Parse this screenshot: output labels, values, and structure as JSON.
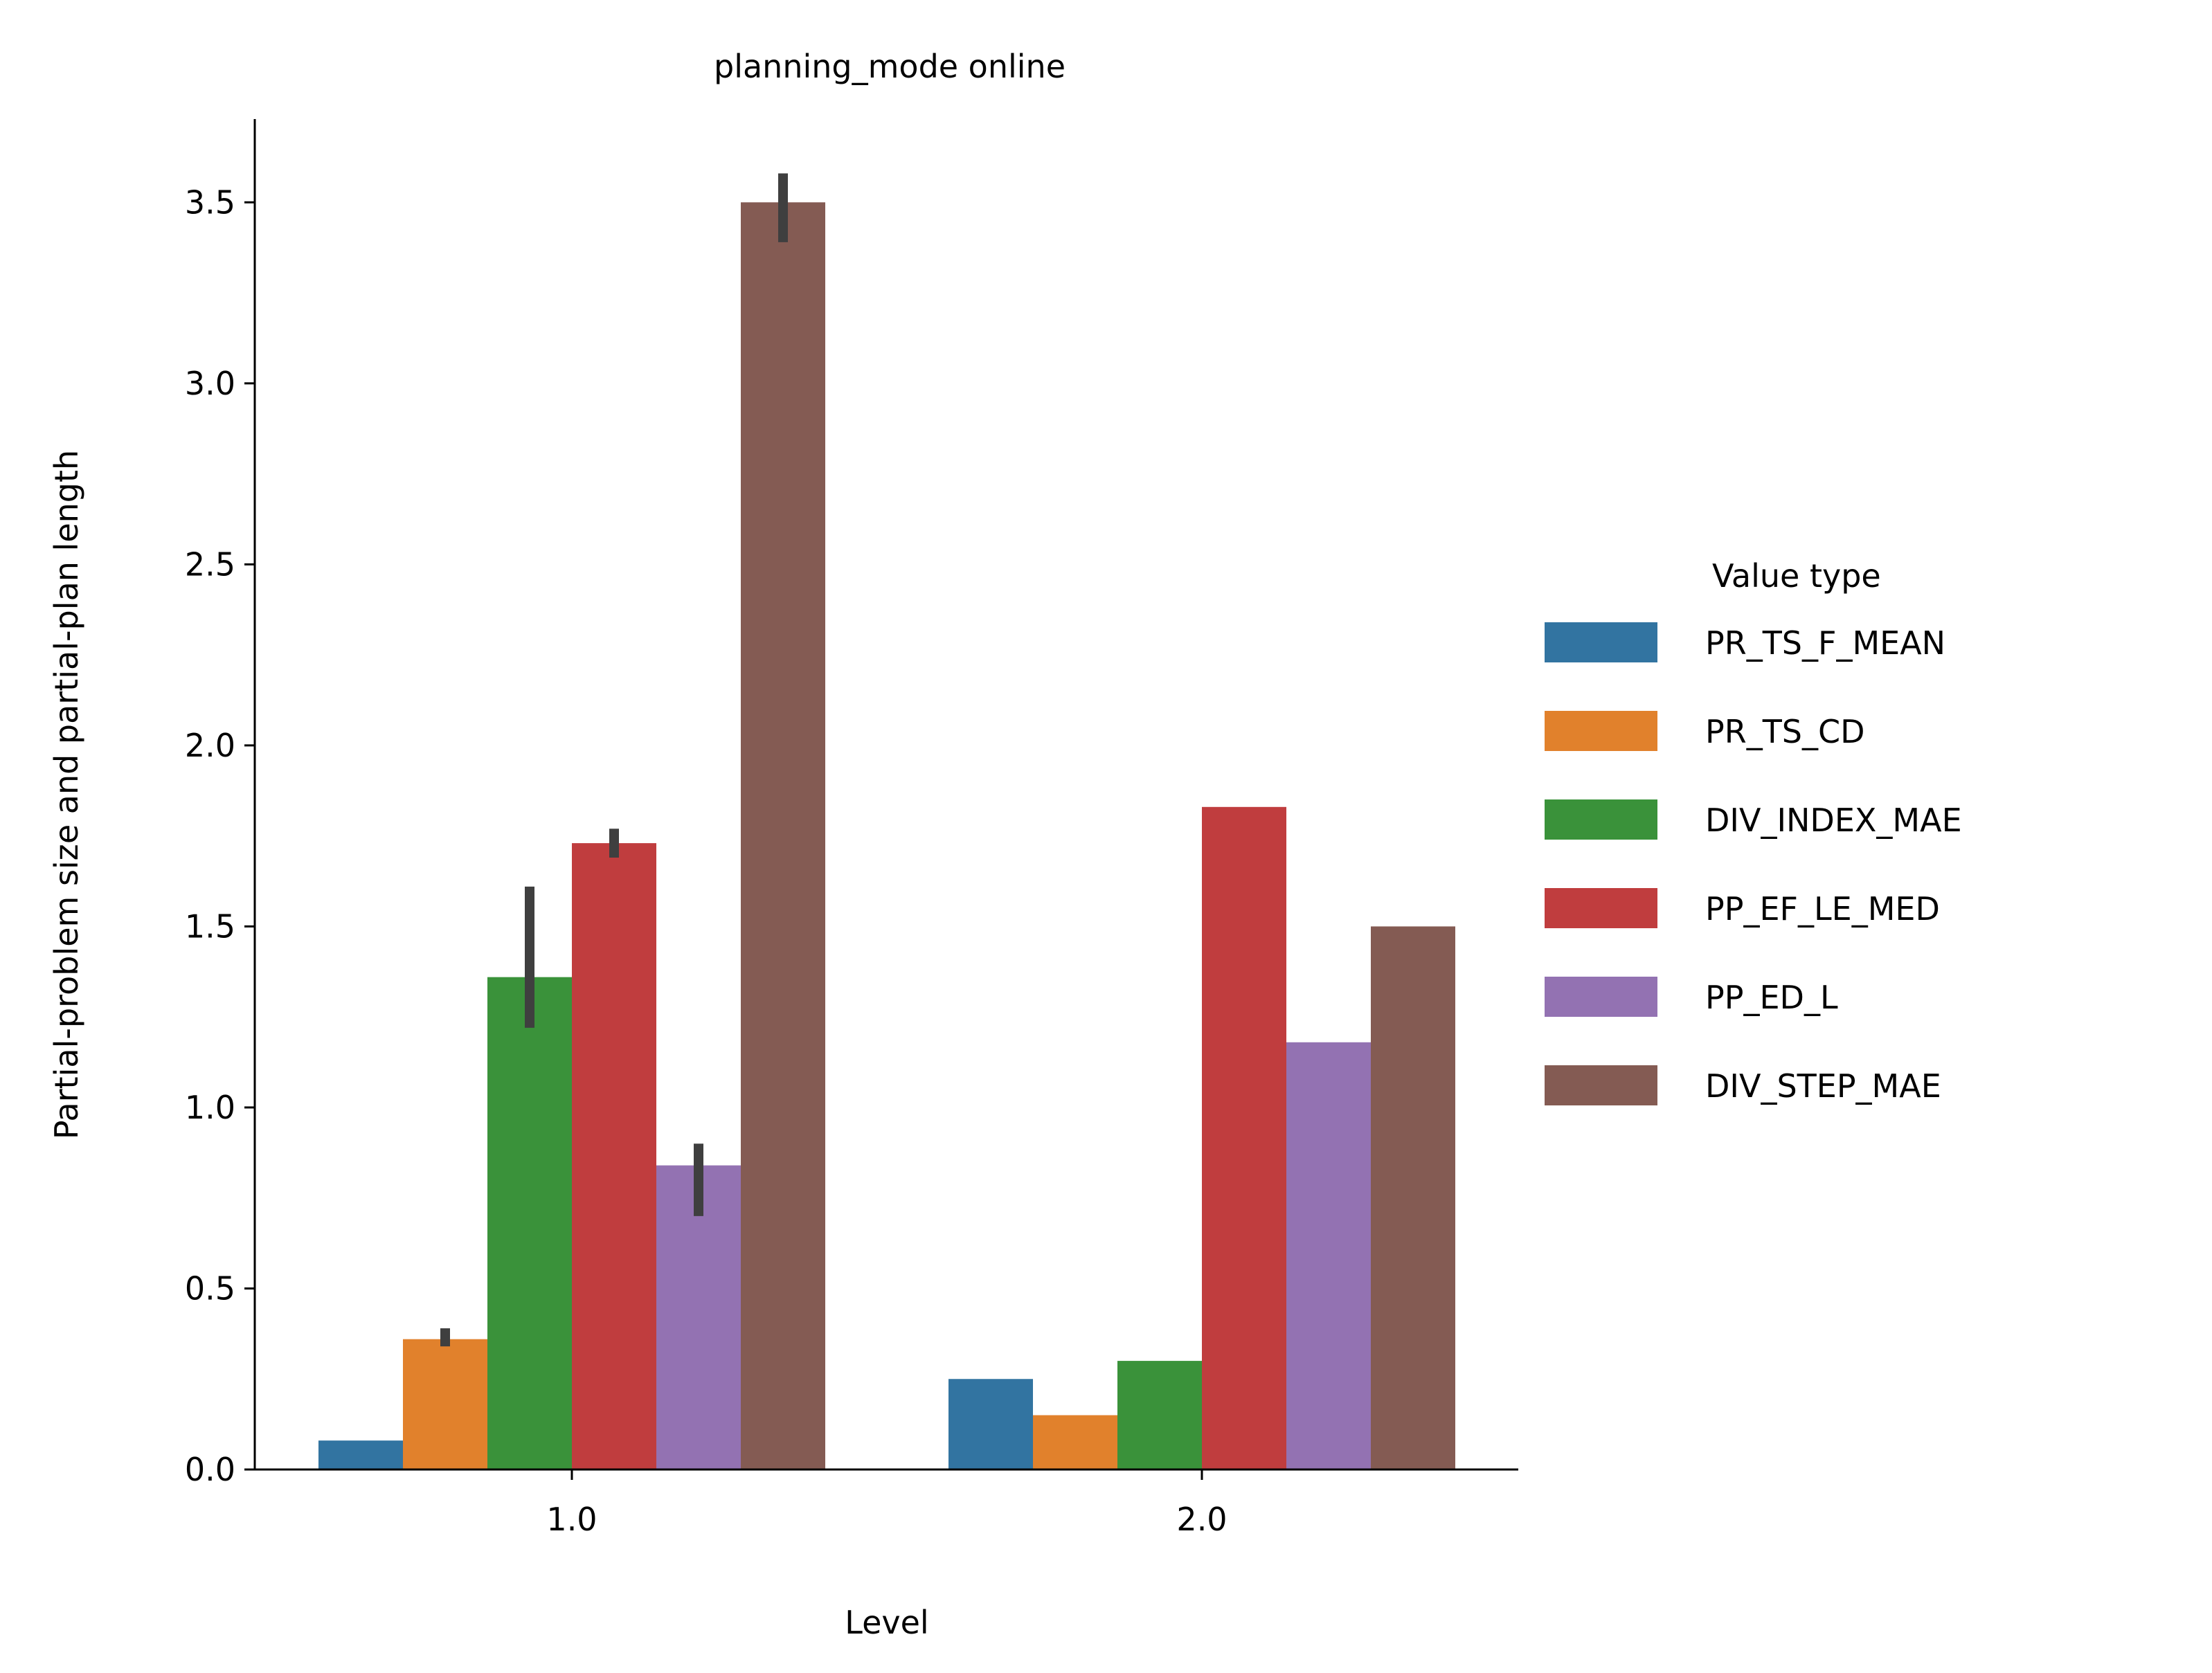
{
  "chart_data": {
    "type": "bar",
    "title": "planning_mode online",
    "xlabel": "Level",
    "ylabel": "Partial-problem size and partial-plan length",
    "categories": [
      "1.0",
      "2.0"
    ],
    "ylim": [
      0,
      3.73
    ],
    "yticks": [
      0.0,
      0.5,
      1.0,
      1.5,
      2.0,
      2.5,
      3.0,
      3.5
    ],
    "ytick_labels": [
      "0.0",
      "0.5",
      "1.0",
      "1.5",
      "2.0",
      "2.5",
      "3.0",
      "3.5"
    ],
    "grid": false,
    "legend": {
      "title": "Value type",
      "placement": "right"
    },
    "series": [
      {
        "name": "PR_TS_F_MEAN",
        "color": "#3274a1",
        "values": [
          0.08,
          0.25
        ],
        "error": [
          null,
          null
        ]
      },
      {
        "name": "PR_TS_CD",
        "color": "#e1812c",
        "values": [
          0.36,
          0.15
        ],
        "error": [
          [
            0.34,
            0.39
          ],
          null
        ]
      },
      {
        "name": "DIV_INDEX_MAE",
        "color": "#3a923a",
        "values": [
          1.36,
          0.3
        ],
        "error": [
          [
            1.22,
            1.61
          ],
          null
        ]
      },
      {
        "name": "PP_EF_LE_MED",
        "color": "#c03d3e",
        "values": [
          1.73,
          1.83
        ],
        "error": [
          [
            1.69,
            1.77
          ],
          null
        ]
      },
      {
        "name": "PP_ED_L",
        "color": "#9372b2",
        "values": [
          0.84,
          1.18
        ],
        "error": [
          [
            0.7,
            0.9
          ],
          null
        ]
      },
      {
        "name": "DIV_STEP_MAE",
        "color": "#845b53",
        "values": [
          3.5,
          1.5
        ],
        "error": [
          [
            3.39,
            3.58
          ],
          null
        ]
      }
    ]
  }
}
